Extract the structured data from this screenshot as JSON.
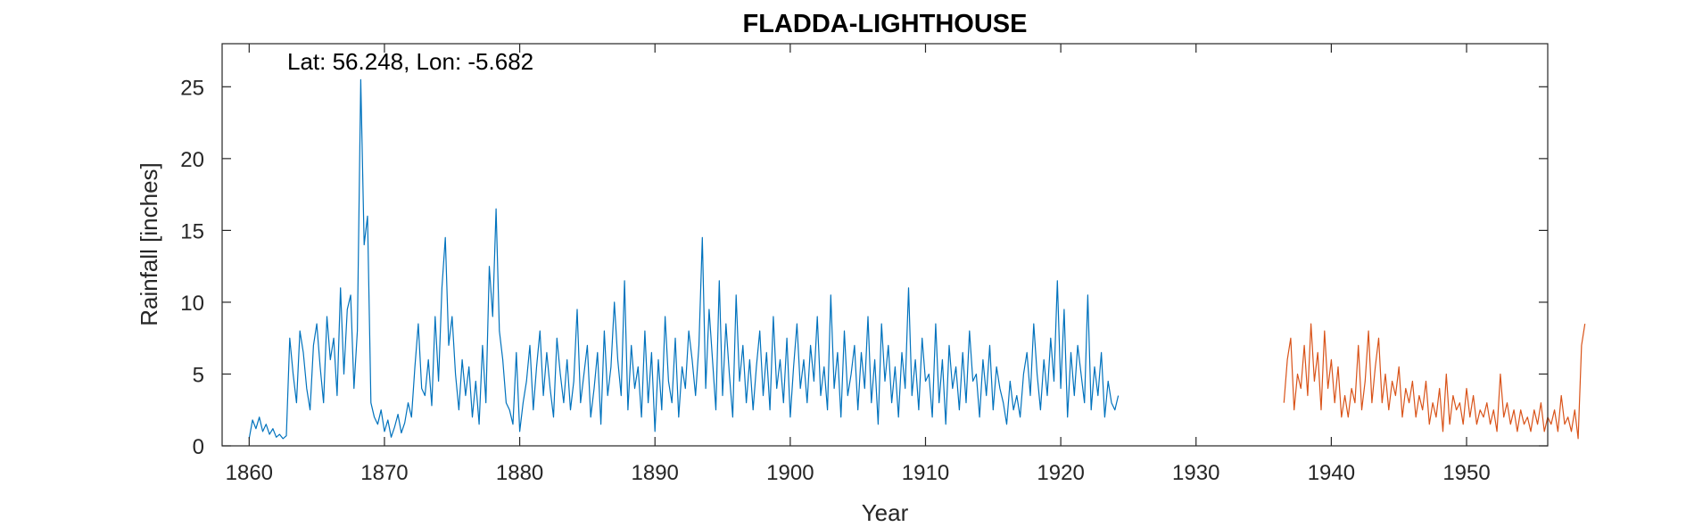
{
  "chart_data": {
    "type": "line",
    "title": "FLADDA-LIGHTHOUSE",
    "annotation": "Lat: 56.248, Lon: -5.682",
    "xlabel": "Year",
    "ylabel": "Rainfall [inches]",
    "xlim": [
      1858,
      1956
    ],
    "ylim": [
      0,
      28
    ],
    "xticks": [
      1860,
      1870,
      1880,
      1890,
      1900,
      1910,
      1920,
      1930,
      1940,
      1950
    ],
    "yticks": [
      0,
      5,
      10,
      15,
      20,
      25
    ],
    "grid": false,
    "colors": {
      "observed": "#0072BD",
      "later": "#D95319",
      "axes": "#262626"
    },
    "series": [
      {
        "color": "#0072BD",
        "x_start": 1860.0,
        "x_step": 0.25,
        "values": [
          0.5,
          1.8,
          1.2,
          2.0,
          1.0,
          1.5,
          0.8,
          1.2,
          0.6,
          0.8,
          0.5,
          0.7,
          7.5,
          5.0,
          3.0,
          8.0,
          6.5,
          4.0,
          2.5,
          7.0,
          8.5,
          5.5,
          3.0,
          9.0,
          6.0,
          7.5,
          3.5,
          11.0,
          5.0,
          9.5,
          10.5,
          4.0,
          8.0,
          25.5,
          14.0,
          16.0,
          3.0,
          2.0,
          1.5,
          2.5,
          1.0,
          1.8,
          0.6,
          1.3,
          2.2,
          0.9,
          1.6,
          3.0,
          2.0,
          5.5,
          8.5,
          4.0,
          3.5,
          6.0,
          2.8,
          9.0,
          4.5,
          11.0,
          14.5,
          7.0,
          9.0,
          5.0,
          2.5,
          6.0,
          3.5,
          5.5,
          2.0,
          4.5,
          1.5,
          7.0,
          3.0,
          12.5,
          9.0,
          16.5,
          8.0,
          6.0,
          3.0,
          2.5,
          1.5,
          6.5,
          1.0,
          3.0,
          4.5,
          7.0,
          2.5,
          5.5,
          8.0,
          3.5,
          6.5,
          4.0,
          2.0,
          7.5,
          5.0,
          3.0,
          6.0,
          2.5,
          4.5,
          9.5,
          3.0,
          5.0,
          7.0,
          2.0,
          4.0,
          6.5,
          1.5,
          8.0,
          3.5,
          5.5,
          10.0,
          6.0,
          3.5,
          11.5,
          2.5,
          7.0,
          4.0,
          5.5,
          2.0,
          8.0,
          3.0,
          6.5,
          1.0,
          6.0,
          2.5,
          9.0,
          4.5,
          3.0,
          7.5,
          2.0,
          5.5,
          4.0,
          8.0,
          6.0,
          3.5,
          7.0,
          14.5,
          4.0,
          9.5,
          6.0,
          2.5,
          11.5,
          3.5,
          8.5,
          5.0,
          2.0,
          10.5,
          4.5,
          7.0,
          3.0,
          6.0,
          2.5,
          5.5,
          8.0,
          3.5,
          6.5,
          2.5,
          9.0,
          4.0,
          6.0,
          3.0,
          7.5,
          2.0,
          5.5,
          8.5,
          4.0,
          6.0,
          3.0,
          7.0,
          4.5,
          9.0,
          3.5,
          5.5,
          2.5,
          10.5,
          4.0,
          6.5,
          2.0,
          8.0,
          3.5,
          5.0,
          7.0,
          2.5,
          6.5,
          4.0,
          9.0,
          3.0,
          6.0,
          1.5,
          8.5,
          4.5,
          7.0,
          3.0,
          5.5,
          2.0,
          6.5,
          4.0,
          11.0,
          3.5,
          6.0,
          2.5,
          7.5,
          4.5,
          5.0,
          2.0,
          8.5,
          3.0,
          6.0,
          1.5,
          7.0,
          4.0,
          5.5,
          2.5,
          6.5,
          3.0,
          8.0,
          4.5,
          5.0,
          2.0,
          6.0,
          3.5,
          7.0,
          2.5,
          5.5,
          4.0,
          3.0,
          1.5,
          4.5,
          2.5,
          3.5,
          2.0,
          5.0,
          6.5,
          3.5,
          8.5,
          5.0,
          2.5,
          6.0,
          3.5,
          7.5,
          4.5,
          11.5,
          4.0,
          9.5,
          2.0,
          6.5,
          3.5,
          7.0,
          5.0,
          3.0,
          10.5,
          2.5,
          5.5,
          3.5,
          6.5,
          2.0,
          4.5,
          3.0,
          2.5,
          3.5
        ]
      },
      {
        "color": "#D95319",
        "x_start": 1936.5,
        "x_step": 0.25,
        "values": [
          3.0,
          6.0,
          7.5,
          2.5,
          5.0,
          4.0,
          7.0,
          3.5,
          8.5,
          4.5,
          6.5,
          2.5,
          8.0,
          4.0,
          6.0,
          3.0,
          5.5,
          2.0,
          3.5,
          2.0,
          4.0,
          3.0,
          7.0,
          2.5,
          4.5,
          8.0,
          3.0,
          5.5,
          7.5,
          3.0,
          5.0,
          2.5,
          4.5,
          3.5,
          5.5,
          2.0,
          4.0,
          3.0,
          4.5,
          2.0,
          3.5,
          2.5,
          4.5,
          1.5,
          3.0,
          2.0,
          4.0,
          1.0,
          5.0,
          1.5,
          3.5,
          2.5,
          3.0,
          1.5,
          4.0,
          2.0,
          3.5,
          1.5,
          2.5,
          2.0,
          3.0,
          1.5,
          2.5,
          1.0,
          5.0,
          2.0,
          3.0,
          1.5,
          2.5,
          1.0,
          2.5,
          1.5,
          2.0,
          1.0,
          2.5,
          1.5,
          3.0,
          1.0,
          2.0,
          1.5,
          2.5,
          1.0,
          3.5,
          1.5,
          2.0,
          1.0,
          2.5,
          0.5,
          7.0,
          8.5
        ]
      }
    ]
  }
}
